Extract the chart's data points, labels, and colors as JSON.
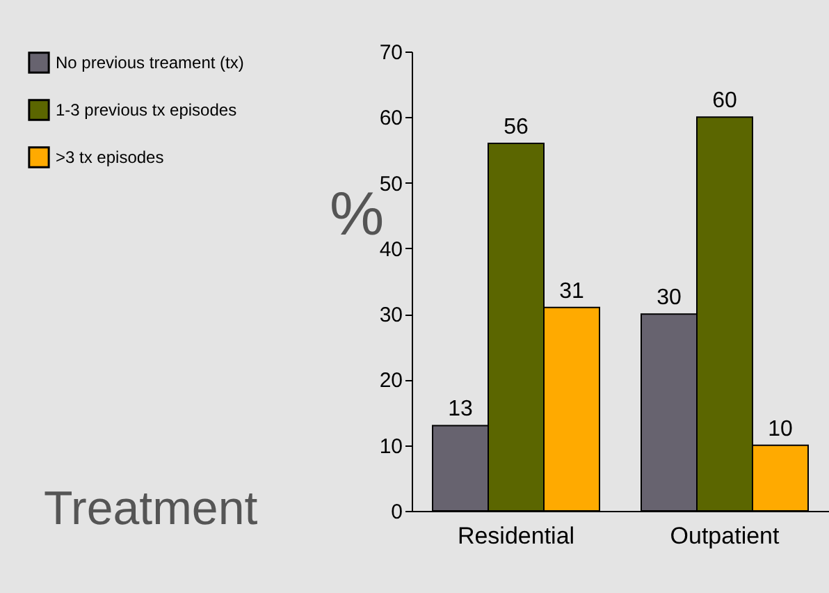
{
  "chart_data": {
    "type": "bar",
    "xlabel": "Treatment",
    "ylabel": "%",
    "categories": [
      "Residential",
      "Outpatient"
    ],
    "series": [
      {
        "name": "No previous treament (tx)",
        "color": "#67636f",
        "values": [
          13,
          30
        ]
      },
      {
        "name": "1-3 previous tx episodes",
        "color": "#5b6600",
        "values": [
          56,
          60
        ]
      },
      {
        "name": ">3 tx episodes",
        "color": "#ffaa00",
        "values": [
          31,
          10
        ]
      }
    ],
    "ylim": [
      0,
      70
    ],
    "yticks": [
      0,
      10,
      20,
      30,
      40,
      50,
      60,
      70
    ],
    "data_labels": true,
    "legend": "top left",
    "grid": false
  }
}
